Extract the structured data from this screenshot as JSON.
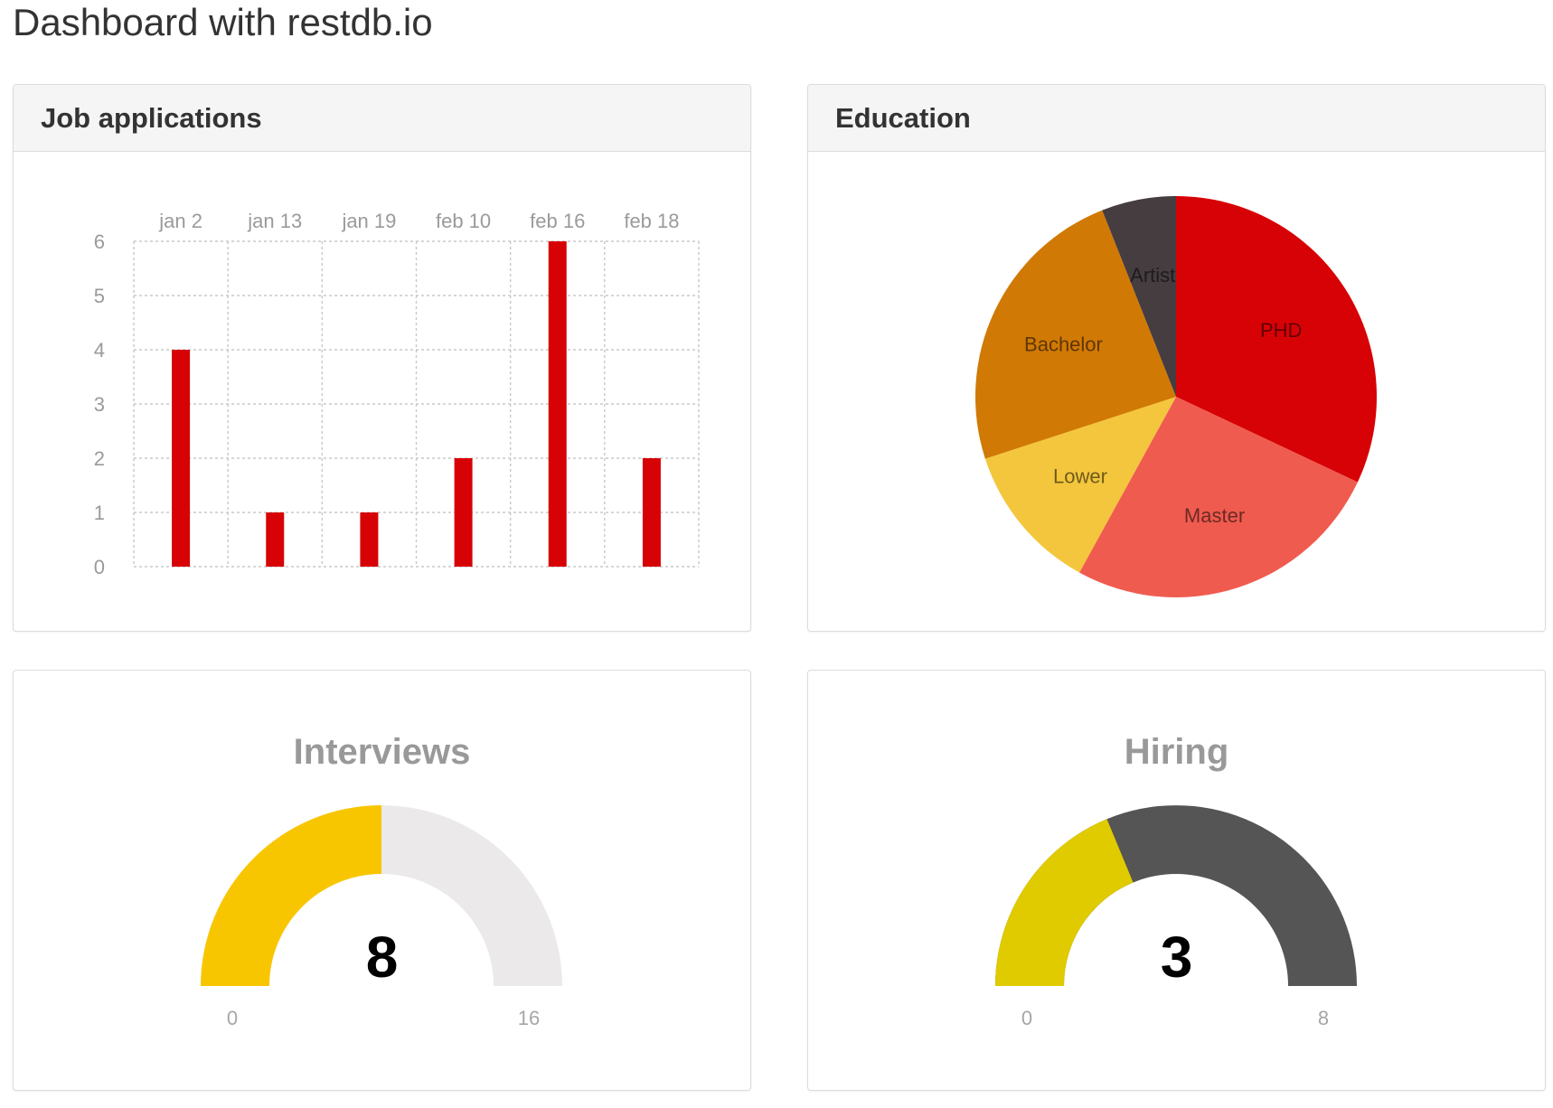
{
  "page": {
    "title": "Dashboard with restdb.io"
  },
  "panels": {
    "jobs": {
      "title": "Job applications"
    },
    "education": {
      "title": "Education"
    },
    "interviews": {
      "title": "Interviews",
      "value": "8",
      "min": "0",
      "max": "16"
    },
    "hiring": {
      "title": "Hiring",
      "value": "3",
      "min": "0",
      "max": "8"
    }
  },
  "chart_data": [
    {
      "type": "bar",
      "title": "Job applications",
      "categories": [
        "jan 2",
        "jan 13",
        "jan 19",
        "feb 10",
        "feb 16",
        "feb 18"
      ],
      "values": [
        4,
        1,
        1,
        2,
        6,
        2
      ],
      "yticks": [
        "0",
        "1",
        "2",
        "3",
        "4",
        "5",
        "6"
      ],
      "ylim": [
        0,
        6
      ],
      "grid": true,
      "color": "#d70206"
    },
    {
      "type": "pie",
      "title": "Education",
      "slices": [
        {
          "label": "PHD",
          "value": 32,
          "color": "#d70206"
        },
        {
          "label": "Master",
          "value": 26,
          "color": "#f05b4f"
        },
        {
          "label": "Lower",
          "value": 12,
          "color": "#f4c63d"
        },
        {
          "label": "Bachelor",
          "value": 24,
          "color": "#d17905"
        },
        {
          "label": "Artist",
          "value": 6,
          "color": "#453d3f"
        }
      ]
    },
    {
      "type": "gauge",
      "title": "Interviews",
      "value": 8,
      "min": 0,
      "max": 16,
      "fill_color": "#f8c600",
      "track_color": "#ebe9e9"
    },
    {
      "type": "gauge",
      "title": "Hiring",
      "value": 3,
      "min": 0,
      "max": 8,
      "fill_color": "#e0ca00",
      "track_color": "#555555"
    }
  ]
}
